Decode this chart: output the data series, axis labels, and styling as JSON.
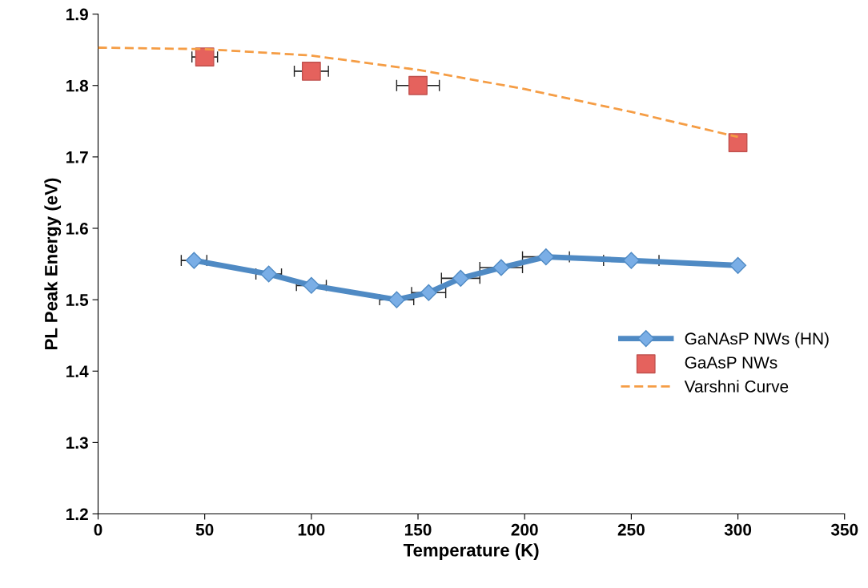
{
  "chart_data": {
    "type": "line",
    "xlabel": "Temperature (K)",
    "ylabel": "PL Peak Energy (eV)",
    "xlim": [
      0,
      350
    ],
    "xticks": [
      0,
      50,
      100,
      150,
      200,
      250,
      300,
      350
    ],
    "ylim": [
      1.2,
      1.9
    ],
    "yticks": [
      1.2,
      1.3,
      1.4,
      1.5,
      1.6,
      1.7,
      1.8,
      1.9
    ],
    "grid": false,
    "legend": "right",
    "series": [
      {
        "name": "GaNAsP NWs (HN)",
        "color": "#4f8ac4",
        "marker": "diamond",
        "x": [
          45,
          80,
          100,
          140,
          155,
          170,
          189,
          210,
          250,
          300
        ],
        "values": [
          1.555,
          1.536,
          1.52,
          1.5,
          1.51,
          1.53,
          1.545,
          1.56,
          1.555,
          1.548
        ],
        "xerrors": [
          6,
          6,
          7,
          8,
          8,
          9,
          10,
          11,
          13,
          null
        ]
      },
      {
        "name": "GaAsP NWs",
        "type": "scatter",
        "color": "#e5625d",
        "marker": "square",
        "x": [
          50,
          100,
          150,
          300
        ],
        "values": [
          1.84,
          1.82,
          1.8,
          1.72
        ],
        "xerrors": [
          6,
          8,
          10,
          null
        ]
      },
      {
        "name": "Varshni Curve",
        "color": "#f59d45",
        "marker": "none",
        "line_style": "dashed",
        "x": [
          0,
          50,
          100,
          150,
          200,
          250,
          300
        ],
        "values": [
          1.853,
          1.851,
          1.842,
          1.822,
          1.795,
          1.763,
          1.728
        ]
      }
    ]
  }
}
